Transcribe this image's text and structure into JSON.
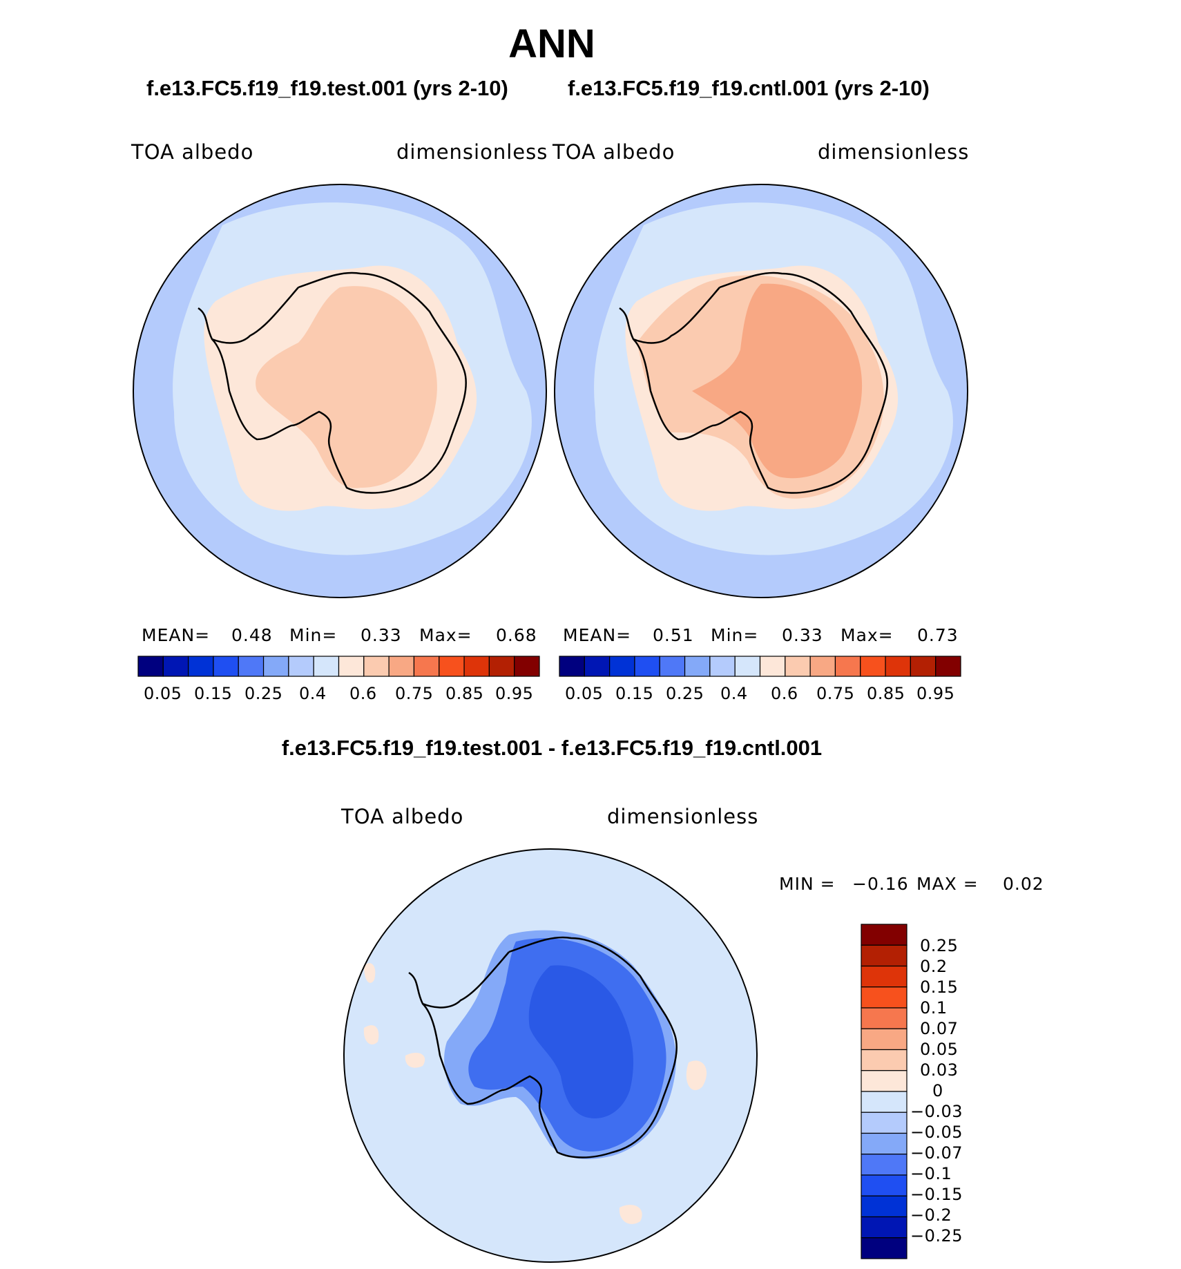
{
  "title": "ANN",
  "colors": {
    "ocean_low": "#b4cbfc",
    "ocean_mid": "#d5e6fb",
    "land_a": "#fde7d9",
    "land_b": "#fbcbb0",
    "land_c": "#f8a884",
    "diff_bg": "#d5e6fb",
    "diff_land": "#3f6ef0",
    "diff_land_dark": "#2a59e6",
    "diff_light": "#84a9f8",
    "diff_pos": "#fde7d9",
    "coast": "#000000"
  },
  "panels": [
    {
      "case": "f.e13.FC5.f19_f19.test.001 (yrs 2-10)",
      "variable": "TOA  albedo",
      "units": "dimensionless",
      "mean_label": "MEAN=",
      "mean": "0.48",
      "min_label": "Min=",
      "min": "0.33",
      "max_label": "Max=",
      "max": "0.68"
    },
    {
      "case": "f.e13.FC5.f19_f19.cntl.001 (yrs 2-10)",
      "variable": "TOA  albedo",
      "units": "dimensionless",
      "mean_label": "MEAN=",
      "mean": "0.51",
      "min_label": "Min=",
      "min": "0.33",
      "max_label": "Max=",
      "max": "0.73"
    }
  ],
  "colorbar_top": {
    "colors": [
      "#00007f",
      "#0016b4",
      "#0032d6",
      "#1f4ff2",
      "#4f78f7",
      "#84a9f8",
      "#b4cbfc",
      "#d5e6fb",
      "#fde7d9",
      "#fbcbb0",
      "#f8a884",
      "#f6774e",
      "#f7511d",
      "#de3409",
      "#b32003",
      "#820000"
    ],
    "tick_labels": [
      "0.05",
      "0.15",
      "0.25",
      "0.4",
      "0.6",
      "0.75",
      "0.85",
      "0.95"
    ]
  },
  "difference": {
    "title": "f.e13.FC5.f19_f19.test.001 - f.e13.FC5.f19_f19.cntl.001",
    "variable": "TOA  albedo",
    "units": "dimensionless",
    "min_label": "MIN =",
    "min": "−0.16",
    "max_label": "MAX =",
    "max": "0.02",
    "colorbar": {
      "colors": [
        "#820000",
        "#b32003",
        "#de3409",
        "#f7511d",
        "#f6774e",
        "#f8a884",
        "#fbcbb0",
        "#fde7d9",
        "#d5e6fb",
        "#b4cbfc",
        "#84a9f8",
        "#4f78f7",
        "#1f4ff2",
        "#0032d6",
        "#0016b4",
        "#00007f"
      ],
      "tick_labels": [
        "0.25",
        "0.2",
        "0.15",
        "0.1",
        "0.07",
        "0.05",
        "0.03",
        "0",
        "−0.03",
        "−0.05",
        "−0.07",
        "−0.1",
        "−0.15",
        "−0.2",
        "−0.25"
      ]
    }
  }
}
